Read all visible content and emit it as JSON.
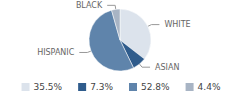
{
  "chart_data": {
    "type": "pie",
    "categories": [
      "WHITE",
      "ASIAN",
      "HISPANIC",
      "BLACK"
    ],
    "values": [
      35.5,
      7.3,
      52.8,
      4.4
    ],
    "value_labels": [
      "35.5%",
      "7.3%",
      "52.8%",
      "4.4%"
    ],
    "colors": [
      "#dce3ec",
      "#2f5c8c",
      "#5f84ab",
      "#a8b4c4"
    ],
    "legend": "bottom"
  }
}
